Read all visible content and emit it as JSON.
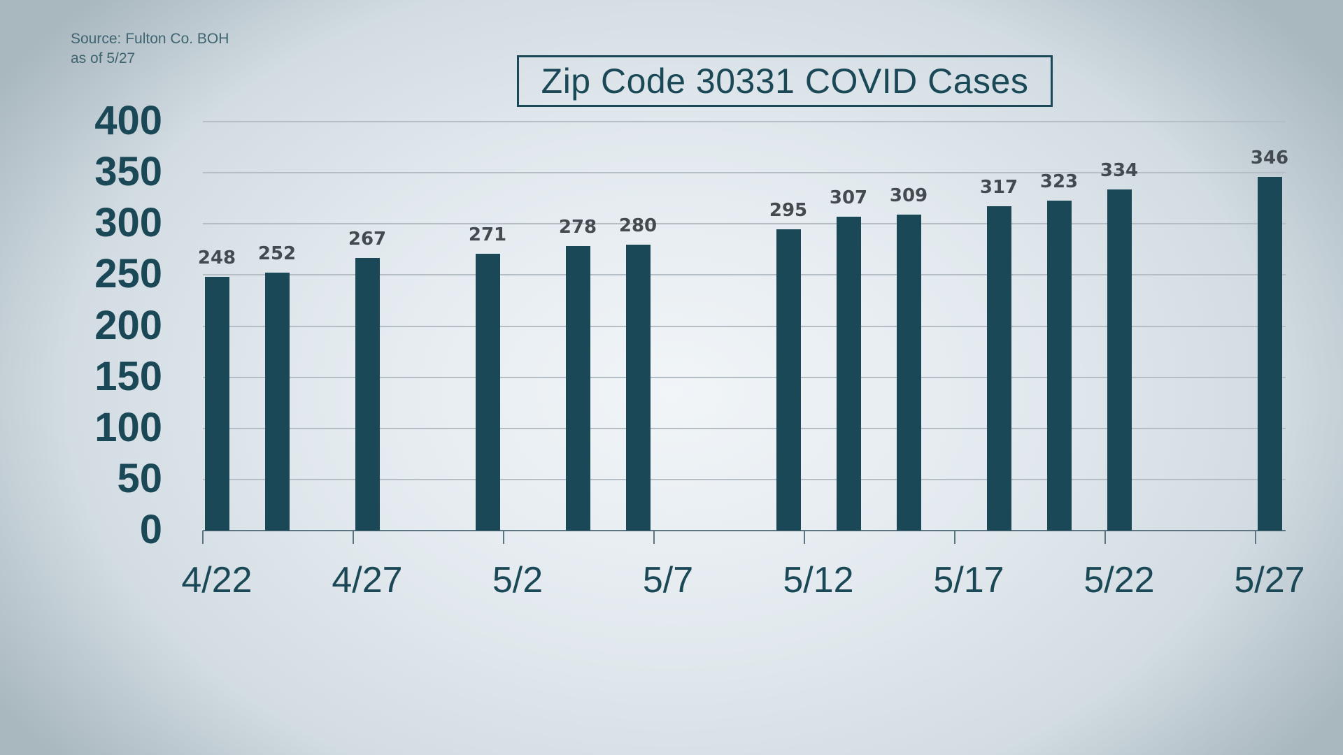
{
  "source": {
    "line1": "Source: Fulton Co. BOH",
    "line2": "as of 5/27"
  },
  "title": "Zip Code 30331 COVID Cases",
  "colors": {
    "bar": "#1b4856",
    "axis_text": "#1b4856",
    "value_label": "#444b50",
    "gridline": "#b4bec4"
  },
  "y_ticks": [
    "400",
    "350",
    "300",
    "250",
    "200",
    "150",
    "100",
    "50",
    "0"
  ],
  "x_ticks": [
    "4/22",
    "4/27",
    "5/2",
    "5/7",
    "5/12",
    "5/17",
    "5/22",
    "5/27"
  ],
  "chart_data": {
    "type": "bar",
    "title": "Zip Code 30331 COVID Cases",
    "subtitle": "Source: Fulton Co. BOH as of 5/27",
    "xlabel": "",
    "ylabel": "",
    "ylim": [
      0,
      400
    ],
    "yticks": [
      0,
      50,
      100,
      150,
      200,
      250,
      300,
      350,
      400
    ],
    "xticks": [
      "4/22",
      "4/27",
      "5/2",
      "5/7",
      "5/12",
      "5/17",
      "5/22",
      "5/27"
    ],
    "grid": true,
    "legend": null,
    "categories": [
      "4/22",
      "4/24",
      "4/27",
      "5/1",
      "5/4",
      "5/6",
      "5/11",
      "5/13",
      "5/15",
      "5/18",
      "5/20",
      "5/22",
      "5/27"
    ],
    "day_offsets": [
      0,
      2,
      5,
      9,
      12,
      14,
      19,
      21,
      23,
      26,
      28,
      30,
      35
    ],
    "values": [
      248,
      252,
      267,
      271,
      278,
      280,
      295,
      307,
      309,
      317,
      323,
      334,
      346
    ],
    "data_labels": true
  }
}
